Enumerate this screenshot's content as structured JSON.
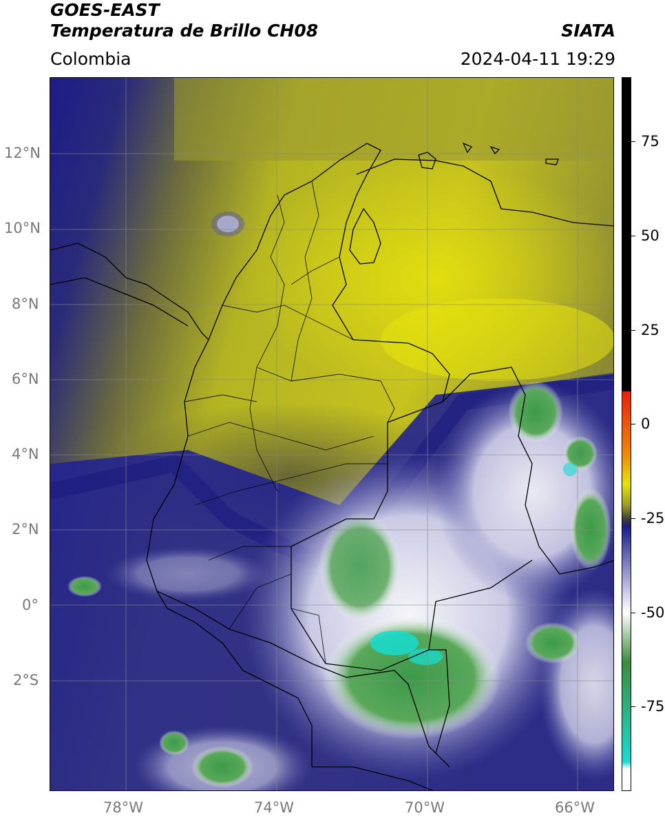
{
  "header": {
    "title_line1": "GOES-EAST",
    "title_line2": "Temperatura de Brillo CH08",
    "region": "Colombia",
    "source": "SIATA",
    "datetime": "2024-04-11 19:29"
  },
  "map": {
    "lat_labels": [
      "12°N",
      "10°N",
      "8°N",
      "6°N",
      "4°N",
      "2°N",
      "0°",
      "2°S"
    ],
    "lon_labels": [
      "78°W",
      "74°W",
      "70°W",
      "66°W"
    ],
    "lat_range": [
      -4.9,
      14.0
    ],
    "lon_range": [
      -80.0,
      -65.0
    ],
    "land_color": "#000000",
    "gridline_color": "#888888"
  },
  "colorbar": {
    "tick_labels": [
      "75",
      "50",
      "25",
      "0",
      "-25",
      "-50",
      "-75"
    ],
    "range": [
      -95,
      90
    ],
    "colors": {
      "warm_top": "#000000",
      "red": "#e8200c",
      "orange": "#f08a0a",
      "yellow": "#e6e20c",
      "olive": "#9a9a28",
      "dark": "#3a3a3a",
      "navy": "#1c1c88",
      "lavender": "#b4b4dc",
      "white": "#ffffff",
      "green": "#3c8c3c",
      "cyan": "#18dcd0"
    }
  }
}
